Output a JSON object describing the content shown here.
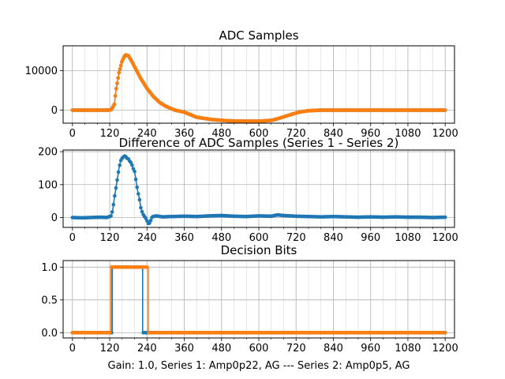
{
  "figure": {
    "xlabel": "Gain: 1.0, Series 1: Amp0p22, AG --- Series 2: Amp0p5, AG"
  },
  "colors": {
    "series1": "#1f77b4",
    "series2": "#ff7f0e",
    "grid": "#b0b0b0",
    "axes": "#000000"
  },
  "chart_data": [
    {
      "type": "scatter",
      "title": "ADC Samples",
      "xlim": [
        -30,
        1230
      ],
      "ylim": [
        -3300,
        16300
      ],
      "xticks": [
        0,
        120,
        240,
        360,
        480,
        600,
        720,
        840,
        960,
        1080,
        1200
      ],
      "xtick_labels": [
        "0",
        "120",
        "240",
        "360",
        "480",
        "600",
        "720",
        "840",
        "960",
        "1080",
        "1200"
      ],
      "yticks": [
        0,
        10000
      ],
      "ytick_labels": [
        "0",
        "10000"
      ],
      "grid": true,
      "series": [
        {
          "name": "Series 1",
          "color": "#1f77b4",
          "x": [
            0,
            100,
            115,
            125,
            135,
            140,
            150,
            160,
            170,
            180,
            190,
            200,
            220,
            240,
            260,
            280,
            300,
            330,
            360,
            400,
            450,
            500,
            550,
            600,
            640,
            660,
            700,
            730,
            760,
            800,
            850,
            900,
            1000,
            1100,
            1200
          ],
          "y": [
            0,
            0,
            0,
            100,
            1500,
            5000,
            9500,
            12500,
            14000,
            13800,
            12500,
            11000,
            8000,
            5500,
            3500,
            2000,
            1000,
            0,
            -500,
            -1800,
            -2400,
            -2700,
            -2800,
            -2800,
            -2600,
            -2200,
            -1200,
            -500,
            -150,
            0,
            0,
            0,
            0,
            0,
            0
          ]
        },
        {
          "name": "Series 2",
          "color": "#ff7f0e",
          "x": [
            0,
            100,
            115,
            125,
            135,
            140,
            150,
            160,
            170,
            180,
            190,
            200,
            220,
            240,
            260,
            280,
            300,
            330,
            360,
            400,
            450,
            500,
            550,
            600,
            640,
            660,
            700,
            730,
            760,
            800,
            850,
            900,
            1000,
            1100,
            1200
          ],
          "y": [
            0,
            0,
            0,
            100,
            1500,
            5000,
            9500,
            12500,
            14000,
            13800,
            12500,
            11000,
            8000,
            5500,
            3500,
            2000,
            1000,
            0,
            -500,
            -1800,
            -2400,
            -2700,
            -2800,
            -2800,
            -2600,
            -2200,
            -1200,
            -500,
            -150,
            0,
            0,
            0,
            0,
            0,
            0
          ]
        }
      ]
    },
    {
      "type": "scatter",
      "title": "Difference of ADC Samples (Series 1 - Series 2)",
      "xlim": [
        -30,
        1230
      ],
      "ylim": [
        -30,
        205
      ],
      "xticks": [
        0,
        120,
        240,
        360,
        480,
        600,
        720,
        840,
        960,
        1080,
        1200
      ],
      "xtick_labels": [
        "0",
        "120",
        "240",
        "360",
        "480",
        "600",
        "720",
        "840",
        "960",
        "1080",
        "1200"
      ],
      "yticks": [
        0,
        100,
        200
      ],
      "ytick_labels": [
        "0",
        "100",
        "200"
      ],
      "grid": true,
      "series": [
        {
          "name": "Difference",
          "color": "#1f77b4",
          "x": [
            0,
            30,
            60,
            90,
            110,
            125,
            130,
            135,
            140,
            145,
            150,
            155,
            160,
            165,
            170,
            175,
            180,
            185,
            190,
            195,
            200,
            205,
            210,
            215,
            220,
            225,
            230,
            235,
            240,
            245,
            250,
            255,
            260,
            270,
            290,
            320,
            360,
            400,
            440,
            480,
            520,
            560,
            600,
            640,
            660,
            680,
            720,
            760,
            800,
            840,
            880,
            920,
            960,
            1000,
            1040,
            1080,
            1120,
            1160,
            1200
          ],
          "y": [
            0,
            -1,
            0,
            1,
            0,
            5,
            25,
            60,
            90,
            120,
            150,
            172,
            180,
            185,
            188,
            180,
            178,
            170,
            165,
            150,
            140,
            110,
            80,
            60,
            30,
            15,
            5,
            0,
            -10,
            -20,
            -15,
            0,
            3,
            5,
            2,
            3,
            4,
            3,
            5,
            6,
            4,
            3,
            5,
            4,
            8,
            6,
            4,
            3,
            2,
            3,
            2,
            1,
            2,
            1,
            2,
            1,
            1,
            0,
            1
          ]
        }
      ]
    },
    {
      "type": "scatter",
      "title": "Decision Bits",
      "xlim": [
        -30,
        1230
      ],
      "ylim": [
        -0.08,
        1.1
      ],
      "xticks": [
        0,
        120,
        240,
        360,
        480,
        600,
        720,
        840,
        960,
        1080,
        1200
      ],
      "xtick_labels": [
        "0",
        "120",
        "240",
        "360",
        "480",
        "600",
        "720",
        "840",
        "960",
        "1080",
        "1200"
      ],
      "yticks": [
        0,
        0.5,
        1
      ],
      "ytick_labels": [
        "0.0",
        "0.5",
        "1.0"
      ],
      "grid": true,
      "series": [
        {
          "name": "Series 1",
          "color": "#1f77b4",
          "step_x": [
            0,
            128,
            128,
            226,
            226,
            1200
          ],
          "step_y": [
            0,
            0,
            1,
            1,
            0,
            0
          ]
        },
        {
          "name": "Series 2",
          "color": "#ff7f0e",
          "step_x": [
            0,
            124,
            124,
            244,
            244,
            1200
          ],
          "step_y": [
            0,
            0,
            1,
            1,
            0,
            0
          ]
        }
      ]
    }
  ]
}
